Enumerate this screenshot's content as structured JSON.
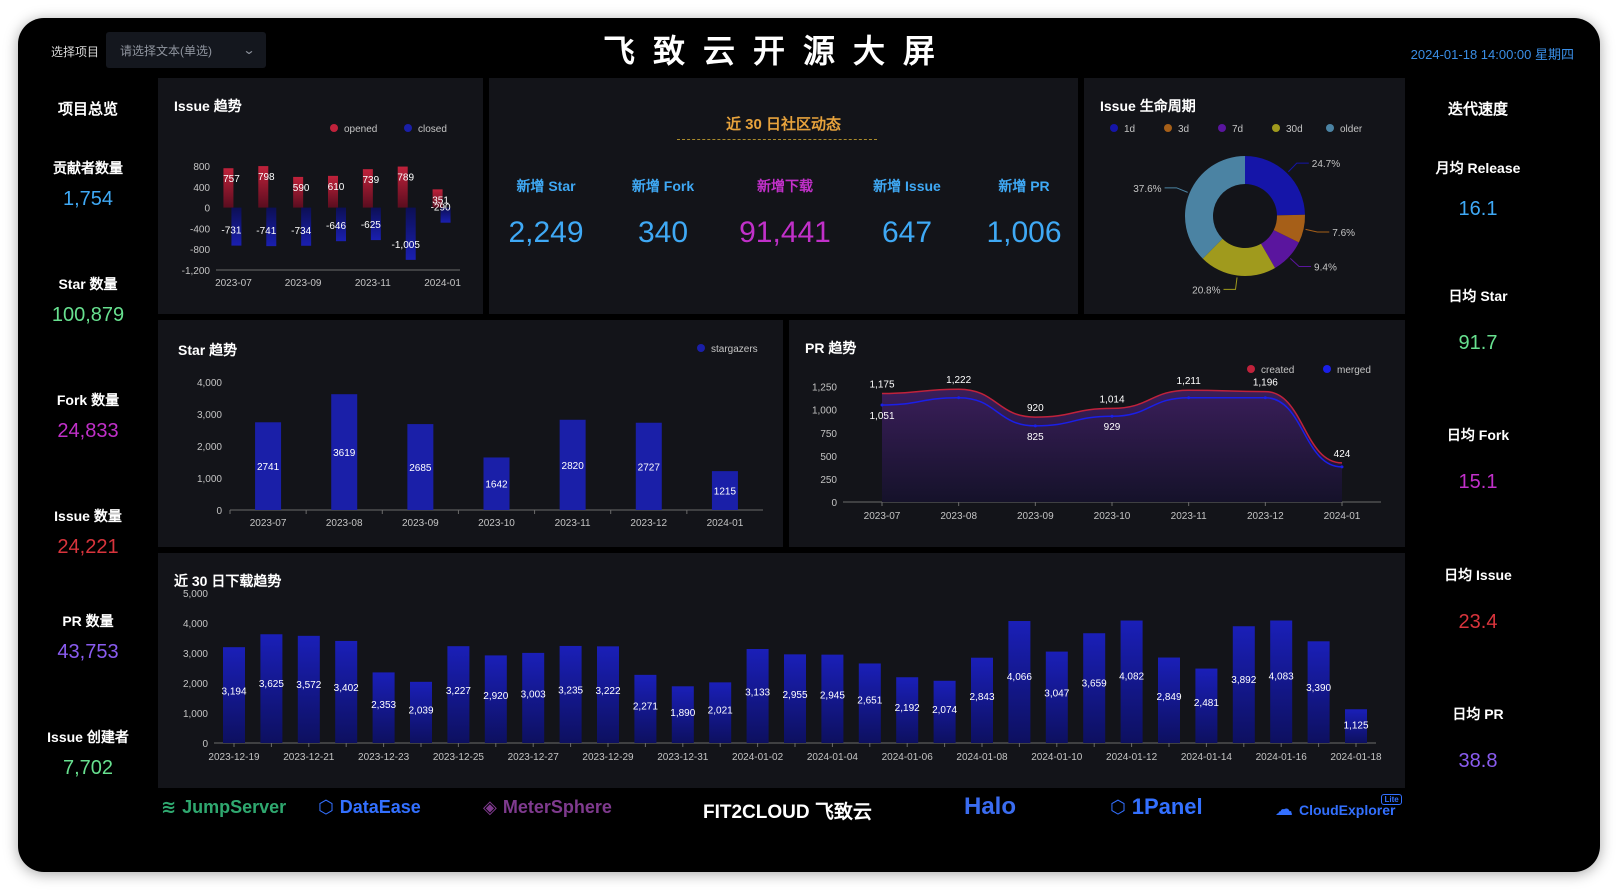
{
  "header": {
    "select_label": "选择项目",
    "select_placeholder": "请选择文本(单选)",
    "title": "飞致云开源大屏",
    "datetime": "2024-01-18 14:00:00 星期四"
  },
  "overview": {
    "title": "项目总览",
    "items": [
      {
        "label": "贡献者数量",
        "value": "1,754",
        "color": "#3fa9f5"
      },
      {
        "label": "Star 数量",
        "value": "100,879",
        "color": "#67e08f"
      },
      {
        "label": "Fork 数量",
        "value": "24,833",
        "color": "#c130c9"
      },
      {
        "label": "Issue 数量",
        "value": "24,221",
        "color": "#d8343c"
      },
      {
        "label": "PR 数量",
        "value": "43,753",
        "color": "#8a5cf0"
      },
      {
        "label": "Issue 创建者",
        "value": "7,702",
        "color": "#67e08f"
      }
    ]
  },
  "velocity": {
    "title": "迭代速度",
    "items": [
      {
        "label": "月均 Release",
        "value": "16.1",
        "color": "#3fa9f5"
      },
      {
        "label": "日均 Star",
        "value": "91.7",
        "color": "#67e08f"
      },
      {
        "label": "日均 Fork",
        "value": "15.1",
        "color": "#c130c9"
      },
      {
        "label": "日均 Issue",
        "value": "23.4",
        "color": "#d8343c"
      },
      {
        "label": "日均 PR",
        "value": "38.8",
        "color": "#8a5cf0"
      }
    ]
  },
  "community": {
    "title": "近 30 日社区动态",
    "stats": [
      {
        "label": "新增 Star",
        "value": "2,249",
        "color": "#3fa9f5"
      },
      {
        "label": "新增 Fork",
        "value": "340",
        "color": "#3fa9f5"
      },
      {
        "label": "新增下载",
        "value": "91,441",
        "color": "#c130c9"
      },
      {
        "label": "新增 Issue",
        "value": "647",
        "color": "#3fa9f5"
      },
      {
        "label": "新增 PR",
        "value": "1,006",
        "color": "#3fa9f5"
      }
    ]
  },
  "panels": {
    "issue_trend": "Issue 趋势",
    "issue_lifecycle": "Issue 生命周期",
    "star_trend": "Star 趋势",
    "pr_trend": "PR 趋势",
    "downloads": "近 30 日下载趋势"
  },
  "chart_data": [
    {
      "id": "issue_trend",
      "type": "bar",
      "categories": [
        "2023-07",
        "2023-08",
        "2023-09",
        "2023-10",
        "2023-11",
        "2023-12",
        "2024-01"
      ],
      "x_tick_labels": [
        "2023-07",
        "2023-09",
        "2023-11",
        "2024-01"
      ],
      "series": [
        {
          "name": "opened",
          "color": "#c0223b",
          "values": [
            757,
            798,
            590,
            610,
            739,
            789,
            351
          ]
        },
        {
          "name": "closed",
          "color": "#1a1fa8",
          "values": [
            -731,
            -741,
            -734,
            -646,
            -625,
            -1005,
            -290
          ]
        }
      ],
      "y_ticks": [
        800,
        400,
        0,
        -400,
        -800,
        -1200
      ],
      "y_tick_labels": [
        "800",
        "400",
        "0",
        "-400",
        "-800",
        "-1,200"
      ],
      "ylim": [
        -1200,
        800
      ],
      "legend": "top-right"
    },
    {
      "id": "issue_lifecycle",
      "type": "pie",
      "donut": true,
      "slices": [
        {
          "name": "1d",
          "value": 24.7,
          "label": "24.7%",
          "color": "#1515a8"
        },
        {
          "name": "3d",
          "value": 7.6,
          "label": "7.6%",
          "color": "#a65f18"
        },
        {
          "name": "7d",
          "value": 9.4,
          "label": "9.4%",
          "color": "#5a159e"
        },
        {
          "name": "30d",
          "value": 20.8,
          "label": "20.8%",
          "color": "#a09a1d"
        },
        {
          "name": "older",
          "value": 37.6,
          "label": "37.6%",
          "color": "#4b83a3"
        }
      ],
      "legend": "top"
    },
    {
      "id": "star_trend",
      "type": "bar",
      "categories": [
        "2023-07",
        "2023-08",
        "2023-09",
        "2023-10",
        "2023-11",
        "2023-12",
        "2024-01"
      ],
      "series": [
        {
          "name": "stargazers",
          "color": "#1a1fa8",
          "values": [
            2741,
            3619,
            2685,
            1642,
            2820,
            2727,
            1215
          ]
        }
      ],
      "y_ticks": [
        4000,
        3000,
        2000,
        1000,
        0
      ],
      "y_tick_labels": [
        "4,000",
        "3,000",
        "2,000",
        "1,000",
        "0"
      ],
      "ylim": [
        0,
        4000
      ],
      "legend": "top-right"
    },
    {
      "id": "pr_trend",
      "type": "area",
      "categories": [
        "2023-07",
        "2023-08",
        "2023-09",
        "2023-10",
        "2023-11",
        "2023-12",
        "2024-01"
      ],
      "series": [
        {
          "name": "created",
          "color": "#c0223b",
          "values": [
            1175,
            1222,
            920,
            1014,
            1211,
            1196,
            424
          ],
          "labels": [
            "1,175",
            "1,222",
            "920",
            "1,014",
            "1,211",
            "1,196",
            "424"
          ]
        },
        {
          "name": "merged",
          "color": "#1a1fe8",
          "values": [
            1051,
            1130,
            825,
            929,
            1130,
            1130,
            380
          ],
          "labels": [
            "1,051",
            "",
            "825",
            "929",
            "",
            "",
            ""
          ]
        }
      ],
      "y_ticks": [
        1250,
        1000,
        750,
        500,
        250,
        0
      ],
      "y_tick_labels": [
        "1,250",
        "1,000",
        "750",
        "500",
        "250",
        "0"
      ],
      "ylim": [
        0,
        1300
      ],
      "legend": "top-right"
    },
    {
      "id": "downloads",
      "type": "bar",
      "categories": [
        "2023-12-19",
        "2023-12-20",
        "2023-12-21",
        "2023-12-22",
        "2023-12-23",
        "2023-12-24",
        "2023-12-25",
        "2023-12-26",
        "2023-12-27",
        "2023-12-28",
        "2023-12-29",
        "2023-12-30",
        "2023-12-31",
        "2024-01-01",
        "2024-01-02",
        "2024-01-03",
        "2024-01-04",
        "2024-01-05",
        "2024-01-06",
        "2024-01-07",
        "2024-01-08",
        "2024-01-09",
        "2024-01-10",
        "2024-01-11",
        "2024-01-12",
        "2024-01-13",
        "2024-01-14",
        "2024-01-15",
        "2024-01-16",
        "2024-01-17",
        "2024-01-18"
      ],
      "x_tick_labels": [
        "2023-12-19",
        "2023-12-21",
        "2023-12-23",
        "2023-12-25",
        "2023-12-27",
        "2023-12-29",
        "2023-12-31",
        "2024-01-02",
        "2024-01-04",
        "2024-01-06",
        "2024-01-08",
        "2024-01-10",
        "2024-01-12",
        "2024-01-14",
        "2024-01-16",
        "2024-01-18"
      ],
      "series": [
        {
          "color": "#1a1fa8",
          "values": [
            3194,
            3625,
            3572,
            3402,
            2353,
            2039,
            3227,
            2920,
            3003,
            3235,
            3222,
            2271,
            1890,
            2021,
            3133,
            2955,
            2945,
            2651,
            2192,
            2074,
            2843,
            4066,
            3047,
            3659,
            4082,
            2849,
            2481,
            3892,
            4083,
            3390,
            1125
          ]
        }
      ],
      "y_ticks": [
        5000,
        4000,
        3000,
        2000,
        1000,
        0
      ],
      "y_tick_labels": [
        "5,000",
        "4,000",
        "3,000",
        "2,000",
        "1,000",
        "0"
      ],
      "ylim": [
        0,
        5000
      ]
    }
  ],
  "logos": [
    {
      "name": "JumpServer",
      "icon": "layers-icon",
      "color": "#2fa86f"
    },
    {
      "name": "DataEase",
      "icon": "hexagon-icon",
      "color": "#3370ff"
    },
    {
      "name": "MeterSphere",
      "icon": "cube-icon",
      "color": "#783887"
    },
    {
      "name": "FIT2CLOUD 飞致云",
      "icon": "",
      "color": "#ffffff"
    },
    {
      "name": "Halo",
      "icon": "",
      "color": "#3a6cf0"
    },
    {
      "name": "1Panel",
      "icon": "hexagon-icon",
      "color": "#3370ff"
    },
    {
      "name": "CloudExplorer",
      "badge": "Lite",
      "icon": "cloud-icon",
      "color": "#3370ff"
    }
  ]
}
